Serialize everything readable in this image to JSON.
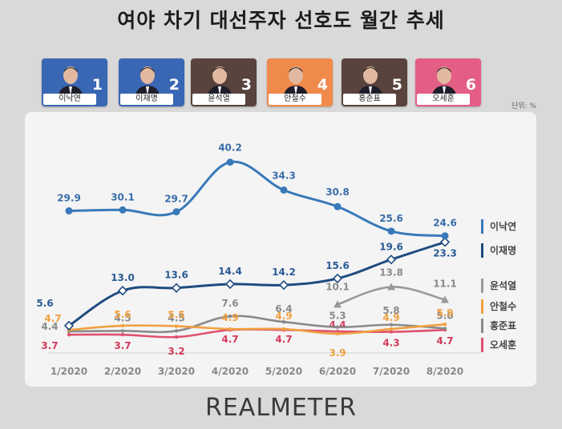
{
  "title": "여야 차기 대선주자 선호도 월간 추세",
  "unit_label": "단위: %",
  "brand": "REALMETER",
  "candidates": [
    {
      "name": "이낙연",
      "number": "1",
      "color": "#3a67b4"
    },
    {
      "name": "이재명",
      "number": "2",
      "color": "#3a67b4"
    },
    {
      "name": "윤석열",
      "number": "3",
      "color": "#59433d"
    },
    {
      "name": "안철수",
      "number": "4",
      "color": "#f08a4b"
    },
    {
      "name": "홍준표",
      "number": "5",
      "color": "#59433d"
    },
    {
      "name": "오세훈",
      "number": "6",
      "color": "#e35d84"
    }
  ],
  "chart_data": {
    "type": "line",
    "categories": [
      "1/2020",
      "2/2020",
      "3/2020",
      "4/2020",
      "5/2020",
      "6/2020",
      "7/2020",
      "8/2020"
    ],
    "ylim": [
      0,
      42
    ],
    "legend_position": "right",
    "series": [
      {
        "name": "이낙연",
        "color": "#3879b9",
        "marker": "circle",
        "values": [
          29.9,
          30.1,
          29.7,
          40.2,
          34.3,
          30.8,
          25.6,
          24.6
        ],
        "labels": [
          "29.9",
          "30.1",
          "29.7",
          "40.2",
          "34.3",
          "30.8",
          "25.6",
          "24.6"
        ]
      },
      {
        "name": "이재명",
        "color": "#1f4b80",
        "marker": "diamond",
        "values": [
          5.6,
          13.0,
          13.6,
          14.4,
          14.2,
          15.6,
          19.6,
          23.3
        ],
        "labels": [
          "5.6",
          "13.0",
          "13.6",
          "14.4",
          "14.2",
          "15.6",
          "19.6",
          "23.3"
        ]
      },
      {
        "name": "윤석열",
        "color": "#999999",
        "marker": "triangle",
        "values": [
          null,
          null,
          null,
          null,
          null,
          10.1,
          13.8,
          11.1
        ],
        "labels": [
          null,
          null,
          null,
          null,
          null,
          "10.1",
          "13.8",
          "11.1"
        ]
      },
      {
        "name": "안철수",
        "color": "#f0a040",
        "marker": "none",
        "values": [
          4.7,
          5.6,
          5.5,
          4.9,
          4.9,
          3.9,
          4.9,
          5.9
        ],
        "labels": [
          "4.7",
          "5.6",
          "5.5",
          "4.9",
          "4.9",
          "3.9",
          "4.9",
          "5.9"
        ]
      },
      {
        "name": "홍준표",
        "color": "#8a8a8a",
        "marker": "none",
        "values": [
          4.4,
          4.5,
          4.5,
          7.6,
          6.4,
          5.3,
          5.8,
          5.0
        ],
        "labels": [
          "4.4",
          "4.5",
          "4.5",
          "7.6",
          "6.4",
          "5.3",
          "5.8",
          "5.0"
        ]
      },
      {
        "name": "오세훈",
        "color": "#e0506e",
        "marker": "none",
        "values": [
          3.7,
          3.7,
          3.2,
          4.7,
          4.7,
          4.4,
          4.3,
          4.7
        ],
        "labels": [
          "3.7",
          "3.7",
          "3.2",
          "4.7",
          "4.7",
          "4.4",
          "4.3",
          "4.7"
        ]
      }
    ]
  }
}
